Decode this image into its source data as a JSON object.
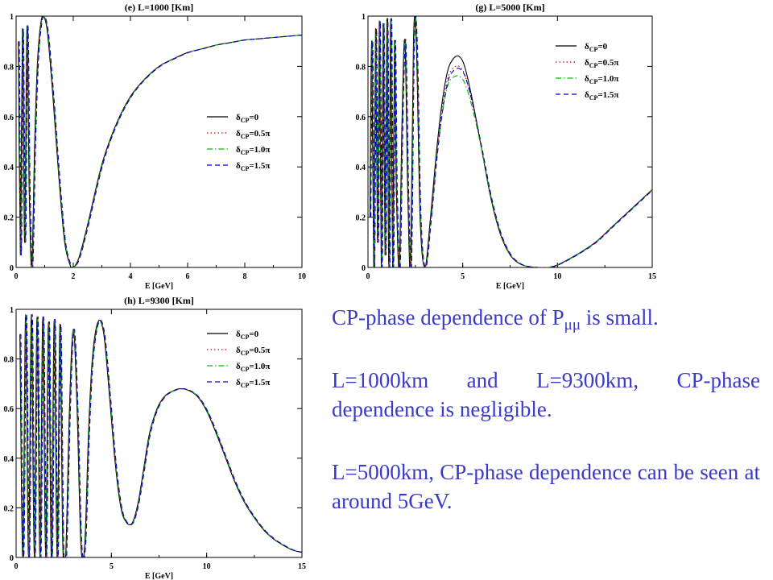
{
  "chart_data": [
    {
      "type": "line",
      "title": "(e) L=1000 [Km]",
      "xlabel": "E [GeV]",
      "xlim": [
        0,
        10
      ],
      "ylim": [
        0,
        1
      ],
      "xticks": [
        0,
        2,
        4,
        6,
        8,
        10
      ],
      "yticks": [
        0,
        0.2,
        0.4,
        0.6,
        0.8,
        1
      ],
      "legend": [
        "δCP=0",
        "δCP=0.5π",
        "δCP=1.0π",
        "δCP=1.5π"
      ],
      "legend_position": "right-middle",
      "series": [
        {
          "name": "δCP=0",
          "color": "#000000",
          "dash": "solid"
        },
        {
          "name": "δCP=0.5π",
          "color": "#cc0000",
          "dash": "dotted"
        },
        {
          "name": "δCP=1.0π",
          "color": "#00bb00",
          "dash": "dash-dot"
        },
        {
          "name": "δCP=1.5π",
          "color": "#0000cc",
          "dash": "dashed"
        }
      ],
      "curve": {
        "x": [
          0.08,
          0.15,
          0.22,
          0.3,
          0.38,
          0.46,
          0.55,
          0.65,
          0.75,
          0.85,
          0.95,
          1.1,
          1.3,
          1.5,
          1.7,
          1.9,
          2.0,
          2.2,
          2.5,
          3.0,
          3.5,
          4.0,
          4.5,
          5.0,
          5.5,
          6.0,
          6.5,
          7.0,
          7.5,
          8.0,
          8.5,
          9.0,
          9.5,
          10.0
        ],
        "y": [
          0.9,
          0.05,
          0.95,
          0.1,
          0.96,
          0.3,
          0.0,
          0.5,
          0.82,
          0.96,
          1.0,
          0.93,
          0.66,
          0.35,
          0.1,
          0.005,
          0.0,
          0.04,
          0.17,
          0.41,
          0.57,
          0.68,
          0.75,
          0.8,
          0.83,
          0.855,
          0.87,
          0.885,
          0.895,
          0.905,
          0.91,
          0.915,
          0.92,
          0.925
        ]
      }
    },
    {
      "type": "line",
      "title": "(g) L=5000 [Km]",
      "xlabel": "E [GeV]",
      "xlim": [
        0,
        15
      ],
      "ylim": [
        0,
        1
      ],
      "xticks": [
        0,
        5,
        10,
        15
      ],
      "yticks": [
        0,
        0.2,
        0.4,
        0.6,
        0.8,
        1
      ],
      "legend": [
        "δCP=0",
        "δCP=0.5π",
        "δCP=1.0π",
        "δCP=1.5π"
      ],
      "legend_position": "top-right",
      "series": [
        {
          "name": "δCP=0",
          "color": "#000000",
          "dash": "solid",
          "peak_at_4_8": 0.84
        },
        {
          "name": "δCP=0.5π",
          "color": "#cc0000",
          "dash": "dotted",
          "peak_at_4_8": 0.8
        },
        {
          "name": "δCP=1.0π",
          "color": "#00bb00",
          "dash": "dash-dot",
          "peak_at_4_8": 0.76
        },
        {
          "name": "δCP=1.5π",
          "color": "#0000cc",
          "dash": "dashed",
          "peak_at_4_8": 0.79
        }
      ],
      "curve": {
        "x": [
          0.1,
          0.2,
          0.3,
          0.4,
          0.5,
          0.6,
          0.7,
          0.8,
          0.9,
          1.0,
          1.1,
          1.2,
          1.3,
          1.4,
          1.5,
          1.65,
          1.8,
          1.95,
          2.1,
          2.25,
          2.4,
          2.55,
          2.75,
          3.0,
          3.3,
          3.6,
          3.9,
          4.2,
          4.5,
          4.8,
          5.1,
          5.5,
          6.0,
          6.5,
          7.0,
          7.5,
          8.0,
          8.5,
          9.0,
          9.5,
          10.0,
          11.0,
          12.0,
          13.0,
          14.0,
          15.0
        ],
        "y": [
          0.2,
          0.9,
          0.0,
          0.95,
          0.1,
          0.98,
          0.0,
          0.97,
          0.05,
          0.99,
          0.0,
          0.99,
          0.0,
          0.9,
          0.3,
          0.0,
          0.6,
          0.9,
          0.3,
          0.0,
          0.9,
          0.9,
          0.2,
          0.0,
          0.2,
          0.45,
          0.65,
          0.78,
          0.83,
          0.84,
          0.8,
          0.67,
          0.47,
          0.27,
          0.13,
          0.05,
          0.015,
          0.003,
          0.0,
          0.0,
          0.01,
          0.05,
          0.1,
          0.17,
          0.24,
          0.31
        ]
      }
    },
    {
      "type": "line",
      "title": "(h) L=9300 [Km]",
      "xlabel": "E [GeV]",
      "xlim": [
        0,
        15
      ],
      "ylim": [
        0,
        1
      ],
      "xticks": [
        0,
        5,
        10,
        15
      ],
      "yticks": [
        0,
        0.2,
        0.4,
        0.6,
        0.8,
        1
      ],
      "legend": [
        "δCP=0",
        "δCP=0.5π",
        "δCP=1.0π",
        "δCP=1.5π"
      ],
      "legend_position": "top-right",
      "series": [
        {
          "name": "δCP=0",
          "color": "#000000",
          "dash": "solid"
        },
        {
          "name": "δCP=0.5π",
          "color": "#cc0000",
          "dash": "dotted"
        },
        {
          "name": "δCP=1.0π",
          "color": "#00bb00",
          "dash": "dash-dot"
        },
        {
          "name": "δCP=1.5π",
          "color": "#0000cc",
          "dash": "dashed"
        }
      ],
      "curve": {
        "x": [
          0.2,
          0.35,
          0.5,
          0.65,
          0.8,
          0.95,
          1.1,
          1.25,
          1.4,
          1.55,
          1.7,
          1.85,
          2.0,
          2.15,
          2.3,
          2.45,
          2.6,
          2.8,
          3.0,
          3.2,
          3.4,
          3.6,
          3.8,
          4.0,
          4.3,
          4.6,
          4.9,
          5.2,
          5.5,
          5.8,
          6.1,
          6.4,
          6.7,
          7.0,
          7.4,
          7.8,
          8.2,
          8.6,
          9.0,
          9.5,
          10.0,
          10.5,
          11.0,
          11.5,
          12.0,
          12.5,
          13.0,
          13.5,
          14.0,
          14.5,
          15.0
        ],
        "y": [
          0.9,
          0.0,
          0.98,
          0.0,
          0.98,
          0.0,
          0.97,
          0.0,
          0.97,
          0.0,
          0.95,
          0.0,
          0.96,
          0.0,
          0.94,
          0.05,
          0.0,
          0.6,
          0.92,
          0.6,
          0.05,
          0.05,
          0.5,
          0.8,
          0.95,
          0.9,
          0.65,
          0.38,
          0.2,
          0.14,
          0.14,
          0.22,
          0.36,
          0.5,
          0.6,
          0.65,
          0.67,
          0.68,
          0.675,
          0.65,
          0.59,
          0.5,
          0.4,
          0.3,
          0.22,
          0.16,
          0.11,
          0.075,
          0.05,
          0.03,
          0.02
        ]
      }
    }
  ],
  "notes": {
    "line1_pre": "CP-phase dependence of P",
    "line1_sub": "μμ",
    "line1_post": " is small.",
    "para2": "L=1000km and L=9300km, CP-phase dependence is negligible.",
    "para3": "L=5000km, CP-phase dependence can be seen at around 5GeV."
  },
  "colors": {
    "note_text": "#3a3ac8"
  }
}
